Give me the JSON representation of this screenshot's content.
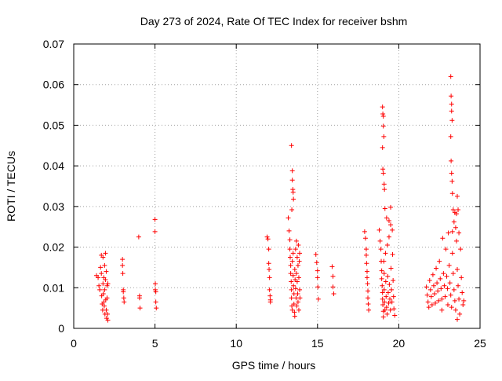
{
  "chart_data": {
    "type": "scatter",
    "title": "Day 273 of 2024, Rate Of TEC Index for receiver bshm",
    "xlabel": "GPS time / hours",
    "ylabel": "ROTI / TECUs",
    "xlim": [
      0,
      25
    ],
    "ylim": [
      0,
      0.07
    ],
    "grid": true,
    "marker": "+",
    "marker_color": "#ff0000",
    "xticks": [
      0,
      5,
      10,
      15,
      20,
      25
    ],
    "xtick_labels": [
      "0",
      "5",
      "10",
      "15",
      "20",
      "25"
    ],
    "yticks": [
      0,
      0.01,
      0.02,
      0.03,
      0.04,
      0.05,
      0.06,
      0.07
    ],
    "ytick_labels": [
      "0",
      "0.01",
      "0.02",
      "0.03",
      "0.04",
      "0.05",
      "0.06",
      "0.07"
    ],
    "series": [
      {
        "name": "bshm",
        "points": [
          [
            1.4,
            0.013
          ],
          [
            1.5,
            0.0125
          ],
          [
            1.55,
            0.0105
          ],
          [
            1.6,
            0.0095
          ],
          [
            1.65,
            0.015
          ],
          [
            1.7,
            0.018
          ],
          [
            1.7,
            0.0135
          ],
          [
            1.72,
            0.008
          ],
          [
            1.75,
            0.006
          ],
          [
            1.78,
            0.0045
          ],
          [
            1.8,
            0.0175
          ],
          [
            1.8,
            0.011
          ],
          [
            1.82,
            0.0085
          ],
          [
            1.85,
            0.0065
          ],
          [
            1.85,
            0.0125
          ],
          [
            1.88,
            0.0055
          ],
          [
            1.9,
            0.0155
          ],
          [
            1.9,
            0.0095
          ],
          [
            1.92,
            0.0035
          ],
          [
            1.95,
            0.0185
          ],
          [
            1.95,
            0.012
          ],
          [
            1.97,
            0.007
          ],
          [
            2.0,
            0.014
          ],
          [
            2.0,
            0.0045
          ],
          [
            2.02,
            0.0025
          ],
          [
            2.05,
            0.0105
          ],
          [
            2.05,
            0.0075
          ],
          [
            2.08,
            0.0035
          ],
          [
            2.1,
            0.011
          ],
          [
            2.1,
            0.002
          ],
          [
            3.0,
            0.017
          ],
          [
            3.0,
            0.0155
          ],
          [
            3.02,
            0.0135
          ],
          [
            3.05,
            0.0095
          ],
          [
            3.05,
            0.009
          ],
          [
            3.08,
            0.0075
          ],
          [
            3.1,
            0.0065
          ],
          [
            4.0,
            0.0225
          ],
          [
            4.05,
            0.008
          ],
          [
            4.05,
            0.0075
          ],
          [
            4.08,
            0.005
          ],
          [
            5.0,
            0.0268
          ],
          [
            5.0,
            0.0238
          ],
          [
            5.02,
            0.011
          ],
          [
            5.02,
            0.0095
          ],
          [
            5.05,
            0.009
          ],
          [
            5.05,
            0.0065
          ],
          [
            5.08,
            0.005
          ],
          [
            11.9,
            0.0225
          ],
          [
            11.95,
            0.022
          ],
          [
            12.0,
            0.0195
          ],
          [
            12.0,
            0.016
          ],
          [
            12.02,
            0.0145
          ],
          [
            12.05,
            0.0125
          ],
          [
            12.05,
            0.0095
          ],
          [
            12.08,
            0.008
          ],
          [
            12.1,
            0.0065
          ],
          [
            12.1,
            0.007
          ],
          [
            13.2,
            0.0272
          ],
          [
            13.25,
            0.024
          ],
          [
            13.3,
            0.0218
          ],
          [
            13.3,
            0.0195
          ],
          [
            13.32,
            0.0175
          ],
          [
            13.35,
            0.0155
          ],
          [
            13.35,
            0.0135
          ],
          [
            13.38,
            0.0115
          ],
          [
            13.4,
            0.0095
          ],
          [
            13.4,
            0.0075
          ],
          [
            13.42,
            0.0055
          ],
          [
            13.45,
            0.0045
          ],
          [
            13.45,
            0.0165
          ],
          [
            13.5,
            0.0185
          ],
          [
            13.5,
            0.013
          ],
          [
            13.52,
            0.0105
          ],
          [
            13.55,
            0.0085
          ],
          [
            13.55,
            0.006
          ],
          [
            13.58,
            0.004
          ],
          [
            13.6,
            0.003
          ],
          [
            13.6,
            0.0145
          ],
          [
            13.62,
            0.012
          ],
          [
            13.65,
            0.0195
          ],
          [
            13.65,
            0.0098
          ],
          [
            13.68,
            0.0075
          ],
          [
            13.7,
            0.0215
          ],
          [
            13.7,
            0.0135
          ],
          [
            13.72,
            0.0055
          ],
          [
            13.75,
            0.0175
          ],
          [
            13.75,
            0.0115
          ],
          [
            13.78,
            0.0085
          ],
          [
            13.8,
            0.0155
          ],
          [
            13.8,
            0.0065
          ],
          [
            13.82,
            0.0205
          ],
          [
            13.85,
            0.0125
          ],
          [
            13.85,
            0.0045
          ],
          [
            13.88,
            0.0165
          ],
          [
            13.9,
            0.0095
          ],
          [
            13.9,
            0.0185
          ],
          [
            13.92,
            0.0075
          ],
          [
            13.4,
            0.045
          ],
          [
            13.45,
            0.0388
          ],
          [
            13.45,
            0.0365
          ],
          [
            13.48,
            0.0342
          ],
          [
            13.5,
            0.0335
          ],
          [
            13.52,
            0.0318
          ],
          [
            13.42,
            0.0292
          ],
          [
            14.9,
            0.0182
          ],
          [
            14.95,
            0.0162
          ],
          [
            15.0,
            0.0142
          ],
          [
            15.0,
            0.0125
          ],
          [
            15.02,
            0.0102
          ],
          [
            15.05,
            0.0072
          ],
          [
            15.9,
            0.0152
          ],
          [
            15.95,
            0.0128
          ],
          [
            15.95,
            0.0102
          ],
          [
            16.0,
            0.0085
          ],
          [
            17.9,
            0.0238
          ],
          [
            17.95,
            0.0222
          ],
          [
            18.0,
            0.0195
          ],
          [
            18.0,
            0.018
          ],
          [
            18.02,
            0.016
          ],
          [
            18.05,
            0.014
          ],
          [
            18.05,
            0.0125
          ],
          [
            18.08,
            0.011
          ],
          [
            18.1,
            0.0092
          ],
          [
            18.1,
            0.0075
          ],
          [
            18.12,
            0.006
          ],
          [
            18.15,
            0.0045
          ],
          [
            18.8,
            0.0242
          ],
          [
            18.85,
            0.0215
          ],
          [
            18.9,
            0.0195
          ],
          [
            18.92,
            0.0165
          ],
          [
            18.95,
            0.0142
          ],
          [
            18.95,
            0.0122
          ],
          [
            18.98,
            0.0105
          ],
          [
            19.0,
            0.0088
          ],
          [
            19.0,
            0.0072
          ],
          [
            19.02,
            0.0058
          ],
          [
            19.05,
            0.0042
          ],
          [
            19.05,
            0.0028
          ],
          [
            19.08,
            0.0165
          ],
          [
            19.1,
            0.0135
          ],
          [
            19.1,
            0.0095
          ],
          [
            19.12,
            0.0065
          ],
          [
            19.15,
            0.0045
          ],
          [
            19.18,
            0.0185
          ],
          [
            19.2,
            0.0115
          ],
          [
            19.22,
            0.0078
          ],
          [
            19.25,
            0.0052
          ],
          [
            19.28,
            0.0035
          ],
          [
            19.3,
            0.0205
          ],
          [
            19.32,
            0.0128
          ],
          [
            19.35,
            0.0088
          ],
          [
            19.38,
            0.0062
          ],
          [
            19.4,
            0.0225
          ],
          [
            19.42,
            0.0108
          ],
          [
            19.45,
            0.0072
          ],
          [
            19.48,
            0.0045
          ],
          [
            19.5,
            0.0255
          ],
          [
            19.52,
            0.0148
          ],
          [
            19.55,
            0.0095
          ],
          [
            19.58,
            0.0065
          ],
          [
            19.6,
            0.0242
          ],
          [
            19.62,
            0.0182
          ],
          [
            19.65,
            0.0118
          ],
          [
            19.68,
            0.0078
          ],
          [
            19.7,
            0.0048
          ],
          [
            19.75,
            0.0032
          ],
          [
            19.0,
            0.0545
          ],
          [
            19.02,
            0.0528
          ],
          [
            19.05,
            0.0522
          ],
          [
            19.05,
            0.0498
          ],
          [
            19.08,
            0.0472
          ],
          [
            19.0,
            0.0445
          ],
          [
            19.02,
            0.0392
          ],
          [
            19.05,
            0.0382
          ],
          [
            19.1,
            0.0355
          ],
          [
            19.12,
            0.0342
          ],
          [
            19.15,
            0.0295
          ],
          [
            19.5,
            0.0298
          ],
          [
            19.25,
            0.0272
          ],
          [
            19.4,
            0.0265
          ],
          [
            21.7,
            0.0102
          ],
          [
            21.75,
            0.0082
          ],
          [
            21.8,
            0.0065
          ],
          [
            21.85,
            0.0052
          ],
          [
            21.9,
            0.0118
          ],
          [
            21.95,
            0.0095
          ],
          [
            22.0,
            0.0078
          ],
          [
            22.05,
            0.0058
          ],
          [
            22.1,
            0.0132
          ],
          [
            22.15,
            0.0105
          ],
          [
            22.2,
            0.0085
          ],
          [
            22.25,
            0.0062
          ],
          [
            22.3,
            0.0148
          ],
          [
            22.35,
            0.0112
          ],
          [
            22.4,
            0.0092
          ],
          [
            22.45,
            0.0068
          ],
          [
            22.5,
            0.0165
          ],
          [
            22.55,
            0.0122
          ],
          [
            22.6,
            0.0098
          ],
          [
            22.65,
            0.0072
          ],
          [
            22.7,
            0.0222
          ],
          [
            22.75,
            0.0135
          ],
          [
            22.8,
            0.0105
          ],
          [
            22.85,
            0.0078
          ],
          [
            22.9,
            0.0195
          ],
          [
            22.95,
            0.0128
          ],
          [
            23.0,
            0.0098
          ],
          [
            23.02,
            0.0058
          ],
          [
            23.05,
            0.0235
          ],
          [
            23.1,
            0.0155
          ],
          [
            23.15,
            0.0112
          ],
          [
            23.2,
            0.0082
          ],
          [
            23.25,
            0.0052
          ],
          [
            23.3,
            0.0185
          ],
          [
            23.35,
            0.0135
          ],
          [
            23.4,
            0.0095
          ],
          [
            23.45,
            0.0068
          ],
          [
            23.5,
            0.0045
          ],
          [
            23.55,
            0.0215
          ],
          [
            23.6,
            0.0145
          ],
          [
            23.65,
            0.0105
          ],
          [
            23.7,
            0.0072
          ],
          [
            23.75,
            0.0035
          ],
          [
            23.8,
            0.0195
          ],
          [
            23.85,
            0.0125
          ],
          [
            23.9,
            0.0088
          ],
          [
            23.95,
            0.0058
          ],
          [
            24.0,
            0.0068
          ],
          [
            23.6,
            0.0022
          ],
          [
            22.65,
            0.0045
          ],
          [
            23.2,
            0.062
          ],
          [
            23.22,
            0.0572
          ],
          [
            23.25,
            0.0552
          ],
          [
            23.25,
            0.0535
          ],
          [
            23.28,
            0.0512
          ],
          [
            23.2,
            0.0472
          ],
          [
            23.22,
            0.0412
          ],
          [
            23.25,
            0.0382
          ],
          [
            23.28,
            0.0362
          ],
          [
            23.3,
            0.0332
          ],
          [
            23.6,
            0.0325
          ],
          [
            23.35,
            0.0292
          ],
          [
            23.45,
            0.0285
          ],
          [
            23.55,
            0.0282
          ],
          [
            23.65,
            0.0292
          ],
          [
            23.4,
            0.0262
          ],
          [
            23.5,
            0.0248
          ],
          [
            23.3,
            0.0238
          ],
          [
            23.7,
            0.0235
          ]
        ]
      }
    ]
  }
}
